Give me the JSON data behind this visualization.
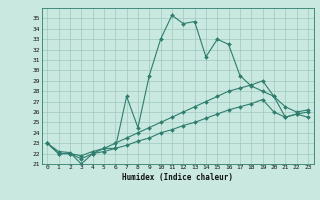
{
  "xlabel": "Humidex (Indice chaleur)",
  "ylabel": "",
  "background_color": "#c8e8e0",
  "grid_color": "#a0c8c0",
  "line_color": "#2e7d6e",
  "xlim": [
    -0.5,
    23.5
  ],
  "ylim": [
    21,
    36
  ],
  "x_ticks": [
    0,
    1,
    2,
    3,
    4,
    5,
    6,
    7,
    8,
    9,
    10,
    11,
    12,
    13,
    14,
    15,
    16,
    17,
    18,
    19,
    20,
    21,
    22,
    23
  ],
  "y_ticks": [
    21,
    22,
    23,
    24,
    25,
    26,
    27,
    28,
    29,
    30,
    31,
    32,
    33,
    34,
    35
  ],
  "series1_x": [
    0,
    1,
    2,
    3,
    4,
    5,
    6,
    7,
    8,
    9,
    10,
    11,
    12,
    13,
    14,
    15,
    16,
    17,
    18,
    19,
    20,
    21,
    22,
    23
  ],
  "series1_y": [
    23.0,
    22.2,
    22.1,
    21.0,
    22.0,
    22.5,
    22.5,
    27.5,
    24.5,
    29.5,
    33.0,
    35.3,
    34.5,
    34.7,
    31.3,
    33.0,
    32.5,
    29.5,
    28.5,
    28.0,
    27.5,
    25.5,
    25.8,
    25.5
  ],
  "series2_x": [
    0,
    1,
    2,
    3,
    4,
    5,
    6,
    7,
    8,
    9,
    10,
    11,
    12,
    13,
    14,
    15,
    16,
    17,
    18,
    19,
    20,
    21,
    22,
    23
  ],
  "series2_y": [
    23.0,
    22.0,
    22.0,
    21.8,
    22.2,
    22.5,
    23.0,
    23.5,
    24.0,
    24.5,
    25.0,
    25.5,
    26.0,
    26.5,
    27.0,
    27.5,
    28.0,
    28.3,
    28.6,
    29.0,
    27.5,
    26.5,
    26.0,
    26.2
  ],
  "series3_x": [
    0,
    1,
    2,
    3,
    4,
    5,
    6,
    7,
    8,
    9,
    10,
    11,
    12,
    13,
    14,
    15,
    16,
    17,
    18,
    19,
    20,
    21,
    22,
    23
  ],
  "series3_y": [
    23.0,
    22.0,
    22.0,
    21.5,
    22.0,
    22.2,
    22.5,
    22.8,
    23.2,
    23.5,
    24.0,
    24.3,
    24.7,
    25.0,
    25.4,
    25.8,
    26.2,
    26.5,
    26.8,
    27.2,
    26.0,
    25.5,
    25.8,
    26.0
  ]
}
